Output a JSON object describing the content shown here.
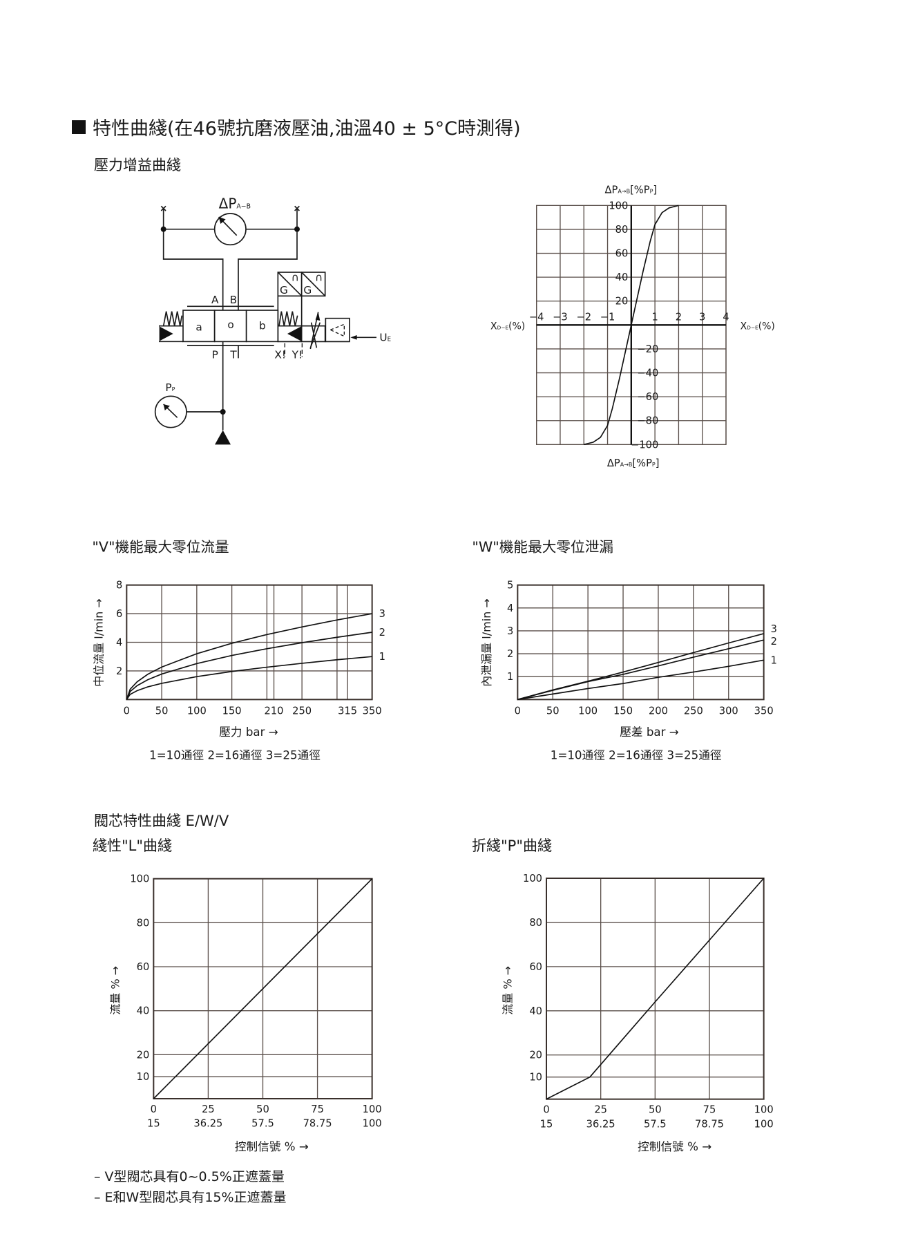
{
  "header": {
    "title": "特性曲綫(在46號抗磨液壓油,油溫40 ± 5°C時測得)",
    "subtitle": "壓力增益曲綫",
    "spool_section": "閥芯特性曲綫 E/W/V"
  },
  "diagram": {
    "dp": "ΔP",
    "dp_sub": "A−B",
    "port_a": "A",
    "port_b": "B",
    "port_p": "P",
    "port_t": "T",
    "port_x": "X!",
    "port_y": "Y!",
    "pos_a": "a",
    "pos_o": "o",
    "pos_b": "b",
    "g1": "G",
    "g2": "G",
    "cap1": "∩",
    "cap2": "∩",
    "ue": "U",
    "ue_sub": "E",
    "pp": "P",
    "pp_sub": "P"
  },
  "chart_data": [
    {
      "id": "gain",
      "type": "line",
      "ylabel": {
        "main": "ΔP",
        "sub": "A→B",
        "tail": "[%P",
        "sub2": "P",
        "end": "]"
      },
      "xlabel": {
        "main": "X",
        "sub": "D−E",
        "tail": "(%)"
      },
      "xlim": [
        -4,
        4
      ],
      "ylim": [
        -100,
        100
      ],
      "xticks": [
        -4,
        -3,
        -2,
        -1,
        1,
        2,
        3,
        4
      ],
      "yticks": [
        100,
        80,
        60,
        40,
        20,
        -20,
        -40,
        -60,
        -80,
        -100
      ],
      "grid": true,
      "series": [
        {
          "x": [
            -2,
            -1.6,
            -1.3,
            -1,
            -0.8,
            -0.5,
            0,
            0.5,
            0.8,
            1,
            1.3,
            1.6,
            2
          ],
          "y": [
            -100,
            -98,
            -94,
            -84,
            -70,
            -45,
            0,
            45,
            70,
            84,
            94,
            98,
            100
          ]
        }
      ]
    },
    {
      "id": "v",
      "type": "line",
      "title": "\"V\"機能最大零位流量",
      "xlabel": "壓力 bar →",
      "ylabel": "中位流量 l/min →",
      "legend": "1=10通徑  2=16通徑  3=25通徑",
      "xlim": [
        0,
        350
      ],
      "ylim": [
        0,
        8
      ],
      "xticks": [
        0,
        50,
        100,
        150,
        210,
        250,
        315,
        350
      ],
      "xgrid": [
        50,
        100,
        150,
        200,
        210,
        250,
        300,
        315
      ],
      "yticks": [
        8,
        6,
        4,
        2
      ],
      "grid": true,
      "x": [
        0,
        5,
        15,
        30,
        50,
        100,
        150,
        200,
        250,
        300,
        350
      ],
      "series": [
        {
          "name": "1",
          "values": [
            0,
            0.36,
            0.62,
            0.88,
            1.13,
            1.6,
            1.96,
            2.26,
            2.53,
            2.78,
            3.0
          ]
        },
        {
          "name": "2",
          "values": [
            0,
            0.56,
            0.97,
            1.38,
            1.78,
            2.51,
            3.08,
            3.55,
            3.97,
            4.35,
            4.7
          ]
        },
        {
          "name": "3",
          "values": [
            0,
            0.72,
            1.24,
            1.76,
            2.27,
            3.2,
            3.93,
            4.54,
            5.07,
            5.56,
            6.0
          ]
        }
      ]
    },
    {
      "id": "w",
      "type": "line",
      "title": "\"W\"機能最大零位泄漏",
      "xlabel": "壓差 bar →",
      "ylabel": "內泄漏量 l/min →",
      "legend": "1=10通徑  2=16通徑  3=25通徑",
      "xlim": [
        0,
        350
      ],
      "ylim": [
        0,
        5
      ],
      "xticks": [
        0,
        50,
        100,
        150,
        200,
        250,
        300,
        350
      ],
      "xgrid": [
        50,
        100,
        150,
        200,
        250,
        300
      ],
      "yticks": [
        5,
        4,
        3,
        2,
        1
      ],
      "grid": true,
      "x": [
        0,
        50,
        100,
        150,
        200,
        250,
        300,
        350
      ],
      "series": [
        {
          "name": "1",
          "values": [
            0,
            0.24,
            0.48,
            0.7,
            0.97,
            1.2,
            1.45,
            1.72
          ]
        },
        {
          "name": "2",
          "values": [
            0,
            0.4,
            0.78,
            1.1,
            1.47,
            1.85,
            2.22,
            2.6
          ]
        },
        {
          "name": "3",
          "values": [
            0,
            0.42,
            0.8,
            1.2,
            1.62,
            2.05,
            2.47,
            2.88
          ]
        }
      ]
    },
    {
      "id": "l",
      "type": "line",
      "title": "綫性\"L\"曲綫",
      "xlabel": "控制信號 % →",
      "ylabel": "流量 % →",
      "xlim": [
        0,
        100
      ],
      "ylim": [
        0,
        100
      ],
      "xticks": [
        0,
        25,
        50,
        75,
        100
      ],
      "xticks2": [
        "15",
        "36.25",
        "57.5",
        "78.75",
        "100"
      ],
      "yticks": [
        100,
        80,
        60,
        40,
        20,
        10
      ],
      "grid": true,
      "series": [
        {
          "x": [
            0,
            100
          ],
          "y": [
            0,
            100
          ]
        }
      ]
    },
    {
      "id": "p",
      "type": "line",
      "title": "折綫\"P\"曲綫",
      "xlabel": "控制信號 % →",
      "ylabel": "流量 % →",
      "xlim": [
        0,
        100
      ],
      "ylim": [
        0,
        100
      ],
      "xticks": [
        0,
        25,
        50,
        75,
        100
      ],
      "xticks2": [
        "15",
        "36.25",
        "57.5",
        "78.75",
        "100"
      ],
      "yticks": [
        100,
        80,
        60,
        40,
        20,
        10
      ],
      "grid": true,
      "series": [
        {
          "x": [
            0,
            20,
            50,
            75,
            100
          ],
          "y": [
            0,
            10,
            44,
            72,
            100
          ]
        }
      ]
    }
  ],
  "notes": [
    "–  V型閥芯具有0~0.5%正遮蓋量",
    "–  E和W型閥芯具有15%正遮蓋量"
  ]
}
